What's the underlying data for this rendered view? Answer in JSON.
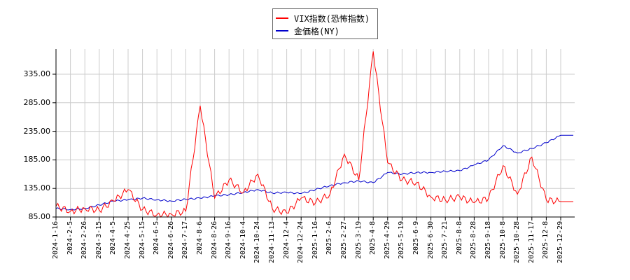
{
  "legend": {
    "items": [
      {
        "label": "VIX指数(恐怖指数)",
        "color": "#ff0000"
      },
      {
        "label": "金価格(NY)",
        "color": "#0000cc"
      }
    ]
  },
  "chart_data": {
    "type": "line",
    "title": "",
    "xlabel": "",
    "ylabel": "",
    "ylim": [
      85,
      385
    ],
    "yticks": [
      "85.00",
      "135.00",
      "185.00",
      "235.00",
      "285.00",
      "335.00"
    ],
    "grid": true,
    "legend_position": "top-center",
    "x": [
      "2024-1-16",
      "2024-2-5",
      "2024-2-26",
      "2024-3-15",
      "2024-4-5",
      "2024-4-25",
      "2024-5-15",
      "2024-6-5",
      "2024-6-26",
      "2024-7-17",
      "2024-8-6",
      "2024-8-26",
      "2024-9-16",
      "2024-10-4",
      "2024-10-24",
      "2024-11-13",
      "2024-12-4",
      "2024-12-24",
      "2025-1-16",
      "2025-2-6",
      "2025-2-27",
      "2025-3-19",
      "2025-4-8",
      "2025-4-29",
      "2025-5-19",
      "2025-6-9",
      "2025-6-30",
      "2025-7-21",
      "2025-8-8",
      "2025-8-28",
      "2025-9-18",
      "2025-10-8",
      "2025-10-28",
      "2025-11-17",
      "2025-12-8",
      "2025-12-29"
    ],
    "series": [
      {
        "name": "VIX指数(恐怖指数)",
        "color": "#ff0000",
        "values": [
          104,
          95,
          100,
          97,
          113,
          133,
          98,
          89,
          90,
          95,
          280,
          118,
          150,
          128,
          160,
          100,
          92,
          118,
          110,
          125,
          195,
          150,
          375,
          180,
          150,
          145,
          120,
          115,
          120,
          110,
          118,
          175,
          125,
          190,
          115,
          112
        ]
      },
      {
        "name": "金価格(NY)",
        "color": "#0000cc",
        "values": [
          100,
          98,
          100,
          106,
          113,
          115,
          118,
          115,
          113,
          116,
          118,
          122,
          124,
          128,
          133,
          127,
          128,
          126,
          133,
          140,
          145,
          148,
          145,
          163,
          160,
          163,
          163,
          165,
          166,
          176,
          185,
          210,
          197,
          205,
          215,
          228
        ]
      }
    ]
  }
}
